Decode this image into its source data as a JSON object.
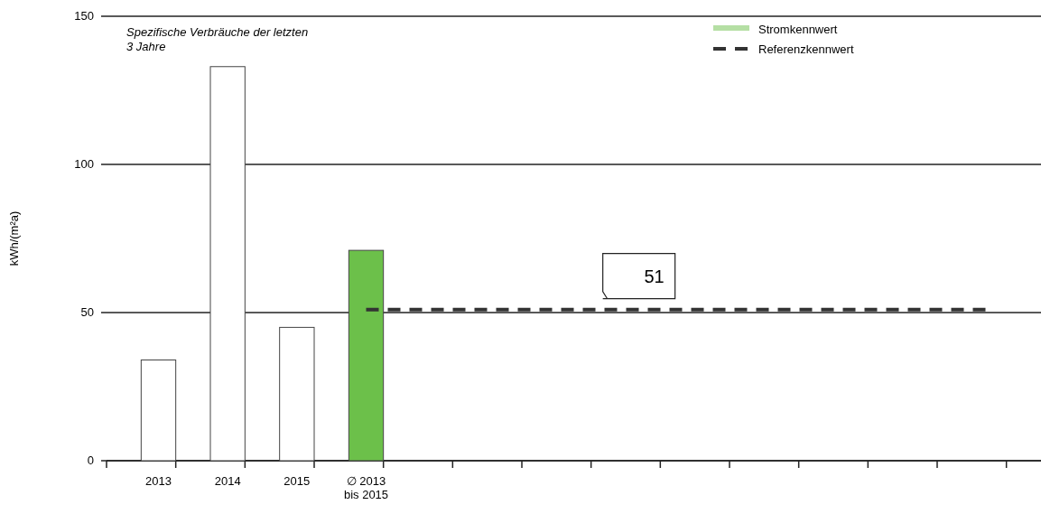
{
  "chart_data": {
    "type": "bar",
    "title": "Spezifische Verbräuche der letzten\n3 Jahre",
    "ylabel": "kWh/(m²a)",
    "categories": [
      "2013",
      "2014",
      "2015",
      "∅ 2013\nbis 2015",
      null,
      null,
      null,
      null,
      null,
      null,
      null,
      null,
      null
    ],
    "series": [
      {
        "name": "Stromkennwert",
        "color": "#6cc04a",
        "colors": [
          "#ffffff",
          "#ffffff",
          "#ffffff",
          "#6cc04a",
          null,
          null,
          null,
          null,
          null,
          null,
          null,
          null,
          null
        ],
        "values": [
          34,
          133,
          45,
          71,
          null,
          null,
          null,
          null,
          null,
          null,
          null,
          null,
          null
        ]
      },
      {
        "name": "Referenzkennwert",
        "type": "line",
        "color": "#333333",
        "line_style": "dashed",
        "values": [
          null,
          null,
          null,
          51,
          51,
          51,
          51,
          51,
          51,
          51,
          51,
          51,
          51
        ]
      }
    ],
    "annotations": [
      {
        "text": "51",
        "y": 51
      }
    ],
    "ylim": [
      0,
      150
    ],
    "yticks": [
      0,
      50,
      100,
      150
    ],
    "grid": "y",
    "legend": "top right"
  }
}
